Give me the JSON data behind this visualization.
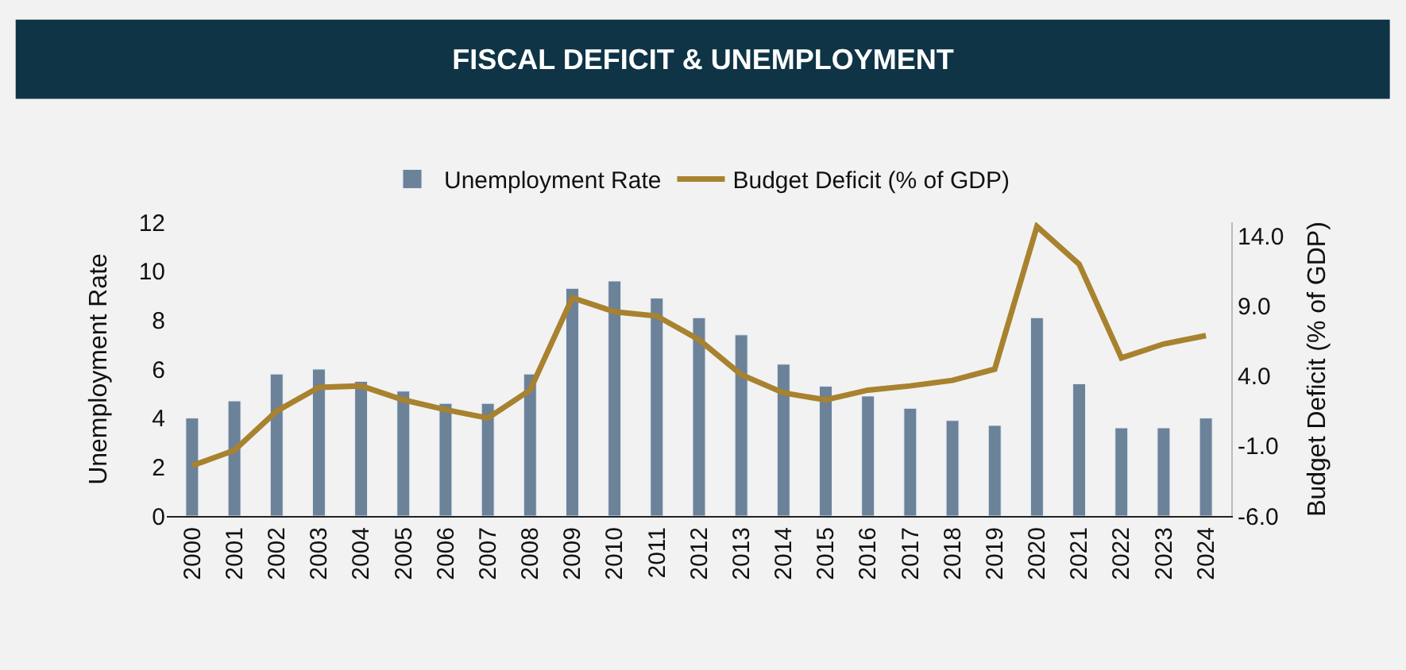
{
  "chart_data": {
    "type": "bar",
    "title": "FISCAL DEFICIT & UNEMPLOYMENT",
    "ylabel": "Unemployment Rate",
    "y2label": "Budget Deficit (% of GDP)",
    "categories": [
      "2000",
      "2001",
      "2002",
      "2003",
      "2004",
      "2005",
      "2006",
      "2007",
      "2008",
      "2009",
      "2010",
      "2011",
      "2012",
      "2013",
      "2014",
      "2015",
      "2016",
      "2017",
      "2018",
      "2019",
      "2020",
      "2021",
      "2022",
      "2023",
      "2024"
    ],
    "series": [
      {
        "name": "Unemployment Rate",
        "type": "bar",
        "color": "#6b8299",
        "values": [
          4.0,
          4.7,
          5.8,
          6.0,
          5.5,
          5.1,
          4.6,
          4.6,
          5.8,
          9.3,
          9.6,
          8.9,
          8.1,
          7.4,
          6.2,
          5.3,
          4.9,
          4.4,
          3.9,
          3.7,
          8.1,
          5.4,
          3.6,
          3.6,
          4.0
        ]
      },
      {
        "name": "Budget Deficit (% of GDP)",
        "type": "line",
        "axis": "y2",
        "color": "#a8822f",
        "values": [
          -2.4,
          -1.3,
          1.5,
          3.2,
          3.3,
          2.3,
          1.6,
          1.0,
          3.0,
          9.6,
          8.6,
          8.3,
          6.6,
          4.1,
          2.8,
          2.3,
          3.0,
          3.3,
          3.7,
          4.5,
          14.7,
          12.0,
          5.3,
          6.3,
          6.9
        ]
      }
    ],
    "ylim": [
      0,
      12
    ],
    "yticks": [
      0,
      2,
      4,
      6,
      8,
      10,
      12
    ],
    "y2lim": [
      -6,
      15
    ],
    "y2ticks": [
      {
        "value": -6,
        "label": "-6.0"
      },
      {
        "value": -1,
        "label": "-1.0"
      },
      {
        "value": 4,
        "label": "4.0"
      },
      {
        "value": 9,
        "label": "9.0"
      },
      {
        "value": 14,
        "label": "14.0"
      }
    ],
    "legend": "top",
    "grid": false,
    "marker": "none"
  }
}
